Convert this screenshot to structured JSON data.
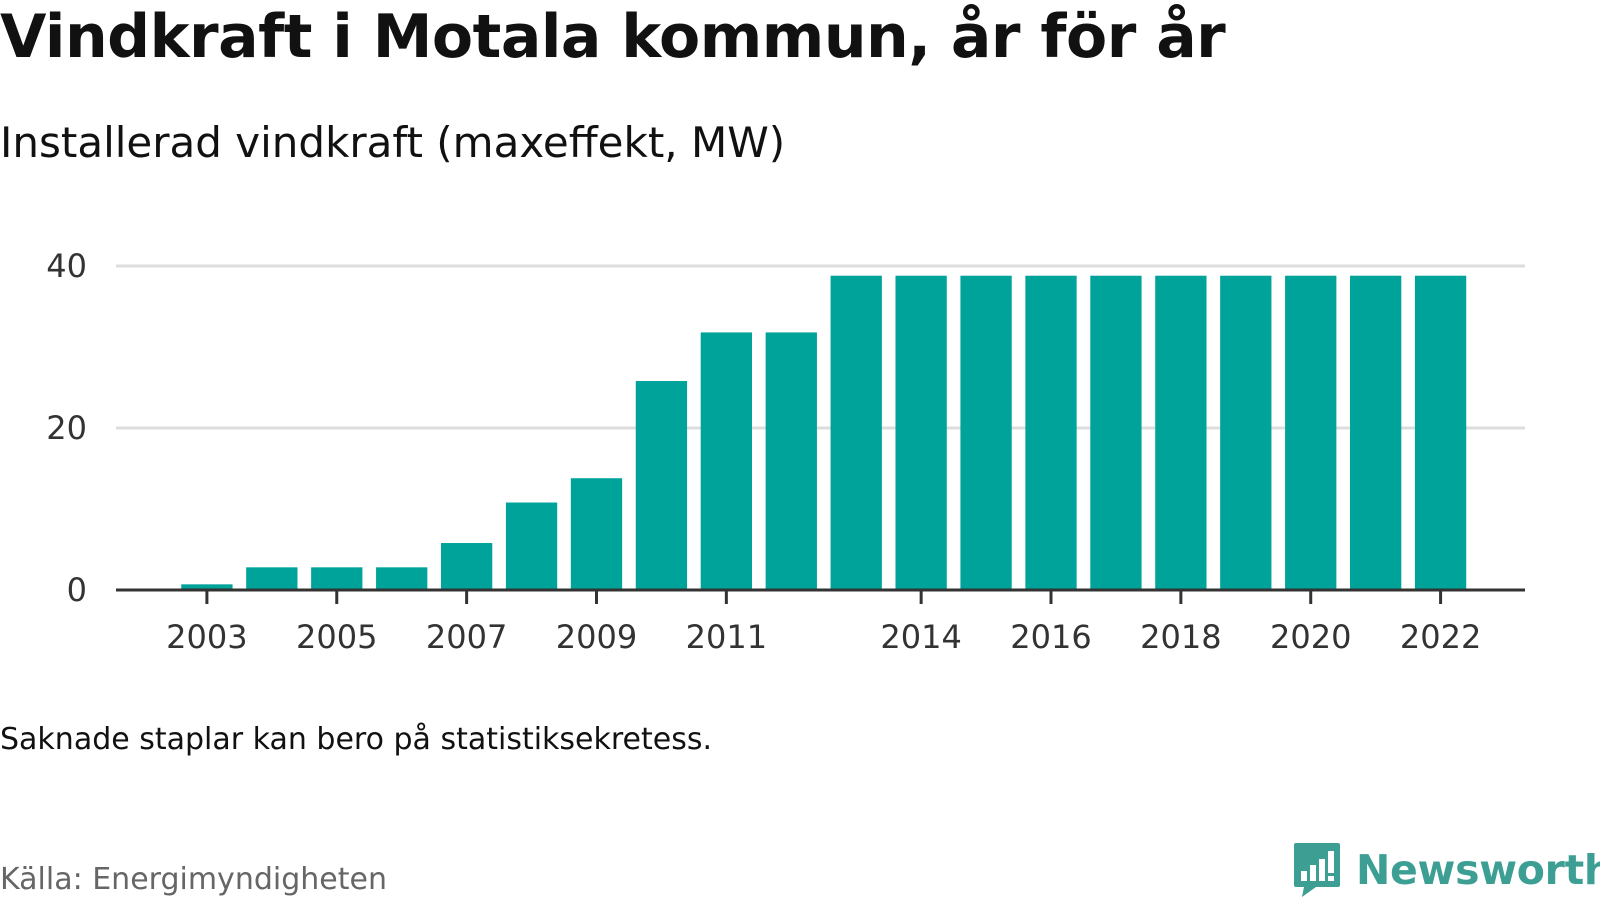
{
  "title": "Vindkraft i Motala kommun, år för år",
  "subtitle": "Installerad vindkraft (maxeffekt, MW)",
  "note": "Saknade staplar kan bero på statistiksekretess.",
  "source": "Källa: Energimyndigheten",
  "brand": {
    "name": "Newsworthy",
    "icon": "newsworthy-logo-icon",
    "color": "#3d9f94"
  },
  "colors": {
    "bar": "#00a39a",
    "grid": "#dddddd",
    "axis": "#333333"
  },
  "chart_data": {
    "type": "bar",
    "title": "Vindkraft i Motala kommun, år för år",
    "subtitle": "Installerad vindkraft (maxeffekt, MW)",
    "xlabel": "",
    "ylabel": "",
    "x": [
      2003,
      2004,
      2005,
      2006,
      2007,
      2008,
      2009,
      2010,
      2011,
      2012,
      2013,
      2014,
      2015,
      2016,
      2017,
      2018,
      2019,
      2020,
      2021,
      2022
    ],
    "values": [
      0.7,
      2.8,
      2.8,
      2.8,
      5.8,
      10.8,
      13.8,
      25.8,
      31.8,
      31.8,
      38.8,
      38.8,
      38.8,
      38.8,
      38.8,
      38.8,
      38.8,
      38.8,
      38.8,
      38.8
    ],
    "xticks": [
      "2003",
      "2005",
      "2007",
      "2009",
      "2011",
      "2014",
      "2016",
      "2018",
      "2020",
      "2022"
    ],
    "yticks": [
      "0",
      "20",
      "40"
    ],
    "ytick_values": [
      0,
      20,
      40
    ],
    "ylim": [
      0,
      40
    ],
    "grid": true,
    "legend": "none"
  }
}
